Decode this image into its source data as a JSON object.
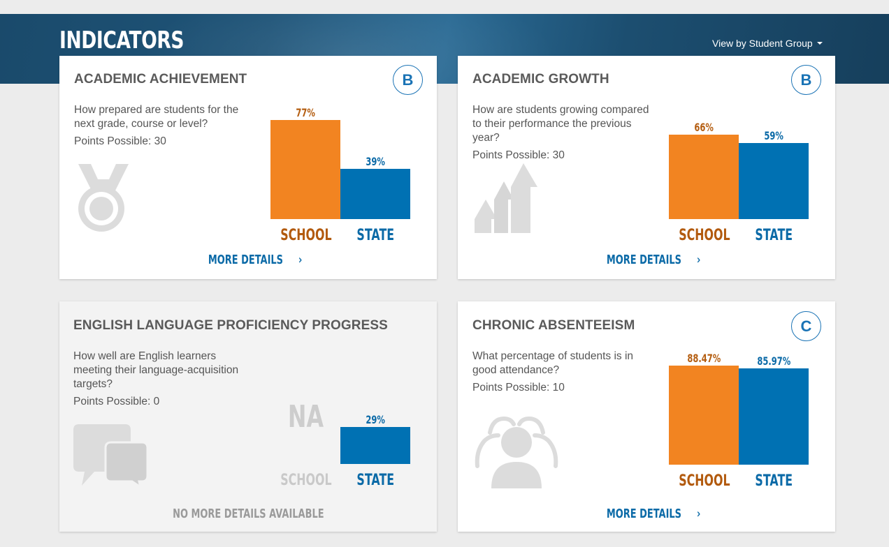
{
  "header": {
    "title": "INDICATORS",
    "view_by_label": "View by Student Group"
  },
  "colors": {
    "school": "#f28421",
    "state": "#0071b3",
    "banner": "#1f5478"
  },
  "cards": [
    {
      "title": "ACADEMIC ACHIEVEMENT",
      "grade": "B",
      "question": "How prepared are students for the next grade, course or level?",
      "points": "Points Possible: 30",
      "icon": "medal-icon",
      "chart_data": {
        "type": "bar",
        "categories": [
          "SCHOOL",
          "STATE"
        ],
        "values": [
          77,
          39
        ],
        "value_labels": [
          "77%",
          "39%"
        ],
        "ylim": [
          0,
          100
        ]
      },
      "more_label": "MORE DETAILS"
    },
    {
      "title": "ACADEMIC GROWTH",
      "grade": "B",
      "question": "How are students growing compared to their performance the previous year?",
      "points": "Points Possible: 30",
      "icon": "growth-arrows-icon",
      "chart_data": {
        "type": "bar",
        "categories": [
          "SCHOOL",
          "STATE"
        ],
        "values": [
          66,
          59
        ],
        "value_labels": [
          "66%",
          "59%"
        ],
        "ylim": [
          0,
          100
        ]
      },
      "more_label": "MORE DETAILS"
    },
    {
      "title": "ENGLISH LANGUAGE PROFICIENCY PROGRESS",
      "question": "How well are English learners meeting their language-acquisition targets?",
      "points": "Points Possible: 0",
      "icon": "speech-bubbles-icon",
      "school_na": "NA",
      "chart_data": {
        "type": "bar",
        "categories": [
          "SCHOOL",
          "STATE"
        ],
        "values": [
          null,
          29
        ],
        "value_labels": [
          "",
          "29%"
        ],
        "ylim": [
          0,
          100
        ]
      },
      "more_label": "NO MORE DETAILS AVAILABLE"
    },
    {
      "title": "CHRONIC ABSENTEEISM",
      "grade": "C",
      "question": "What percentage of students is in good attendance?",
      "points": "Points Possible: 10",
      "icon": "people-group-icon",
      "chart_data": {
        "type": "bar",
        "categories": [
          "SCHOOL",
          "STATE"
        ],
        "values": [
          88.47,
          85.97
        ],
        "value_labels": [
          "88.47%",
          "85.97%"
        ],
        "ylim": [
          0,
          100
        ]
      },
      "more_label": "MORE DETAILS"
    }
  ]
}
